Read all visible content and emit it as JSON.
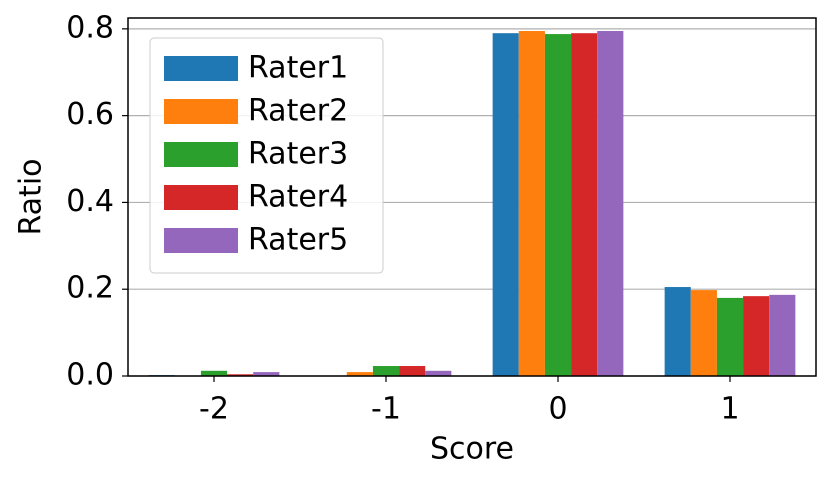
{
  "chart_data": {
    "type": "bar",
    "xlabel": "Score",
    "ylabel": "Ratio",
    "categories": [
      "-2",
      "-1",
      "0",
      "1"
    ],
    "series": [
      {
        "name": "Rater1",
        "color": "#1f77b4",
        "values": [
          0.002,
          0.001,
          0.79,
          0.205
        ]
      },
      {
        "name": "Rater2",
        "color": "#ff7f0e",
        "values": [
          0.001,
          0.009,
          0.795,
          0.198
        ]
      },
      {
        "name": "Rater3",
        "color": "#2ca02c",
        "values": [
          0.012,
          0.023,
          0.788,
          0.18
        ]
      },
      {
        "name": "Rater4",
        "color": "#d62728",
        "values": [
          0.004,
          0.023,
          0.79,
          0.184
        ]
      },
      {
        "name": "Rater5",
        "color": "#9467bd",
        "values": [
          0.009,
          0.012,
          0.795,
          0.187
        ]
      }
    ],
    "ylim": [
      0,
      0.825
    ],
    "yticks": [
      {
        "value": 0,
        "label": "0.0"
      },
      0.2,
      0.4,
      0.6,
      0.8
    ],
    "grid": true,
    "legend": "upper left"
  }
}
